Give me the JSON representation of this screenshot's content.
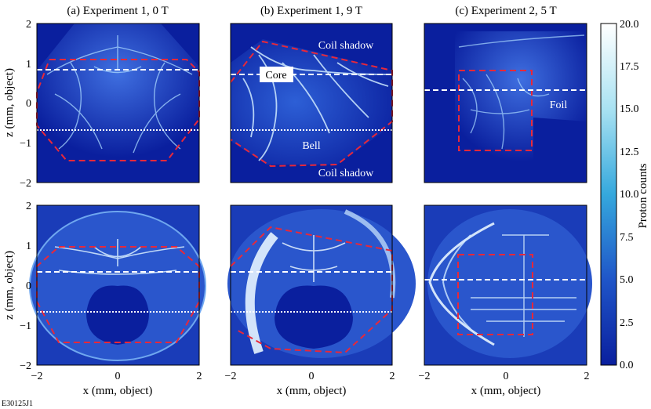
{
  "figure": {
    "panel_titles": [
      "(a) Experiment 1, 0 T",
      "(b) Experiment 1, 9 T",
      "(c) Experiment 2, 5 T"
    ],
    "figure_id": "E30125J1",
    "x_axis_label": "x (mm, object)",
    "z_axis_label": "z (mm, object)",
    "axis_ticks": [
      "−2",
      "0",
      "2"
    ],
    "z_ticks": [
      "2",
      "1",
      "0",
      "−1",
      "−2"
    ],
    "annotations": {
      "coil_shadow_top": "Coil shadow",
      "core": "Core",
      "bell": "Bell",
      "coil_shadow_bottom": "Coil shadow",
      "foil": "Foil"
    },
    "colorbar": {
      "label": "Proton counts",
      "ticks": [
        "20.0",
        "17.5",
        "15.0",
        "12.5",
        "10.0",
        "7.5",
        "5.0",
        "2.5",
        "0.0"
      ],
      "min": 0,
      "max": 20
    },
    "colors": {
      "background_dark": "#0a1f9e",
      "highlight": "#ffffff",
      "overlay_dashed_red": "#e8283a",
      "overlay_lines_white": "#ffffff"
    }
  }
}
